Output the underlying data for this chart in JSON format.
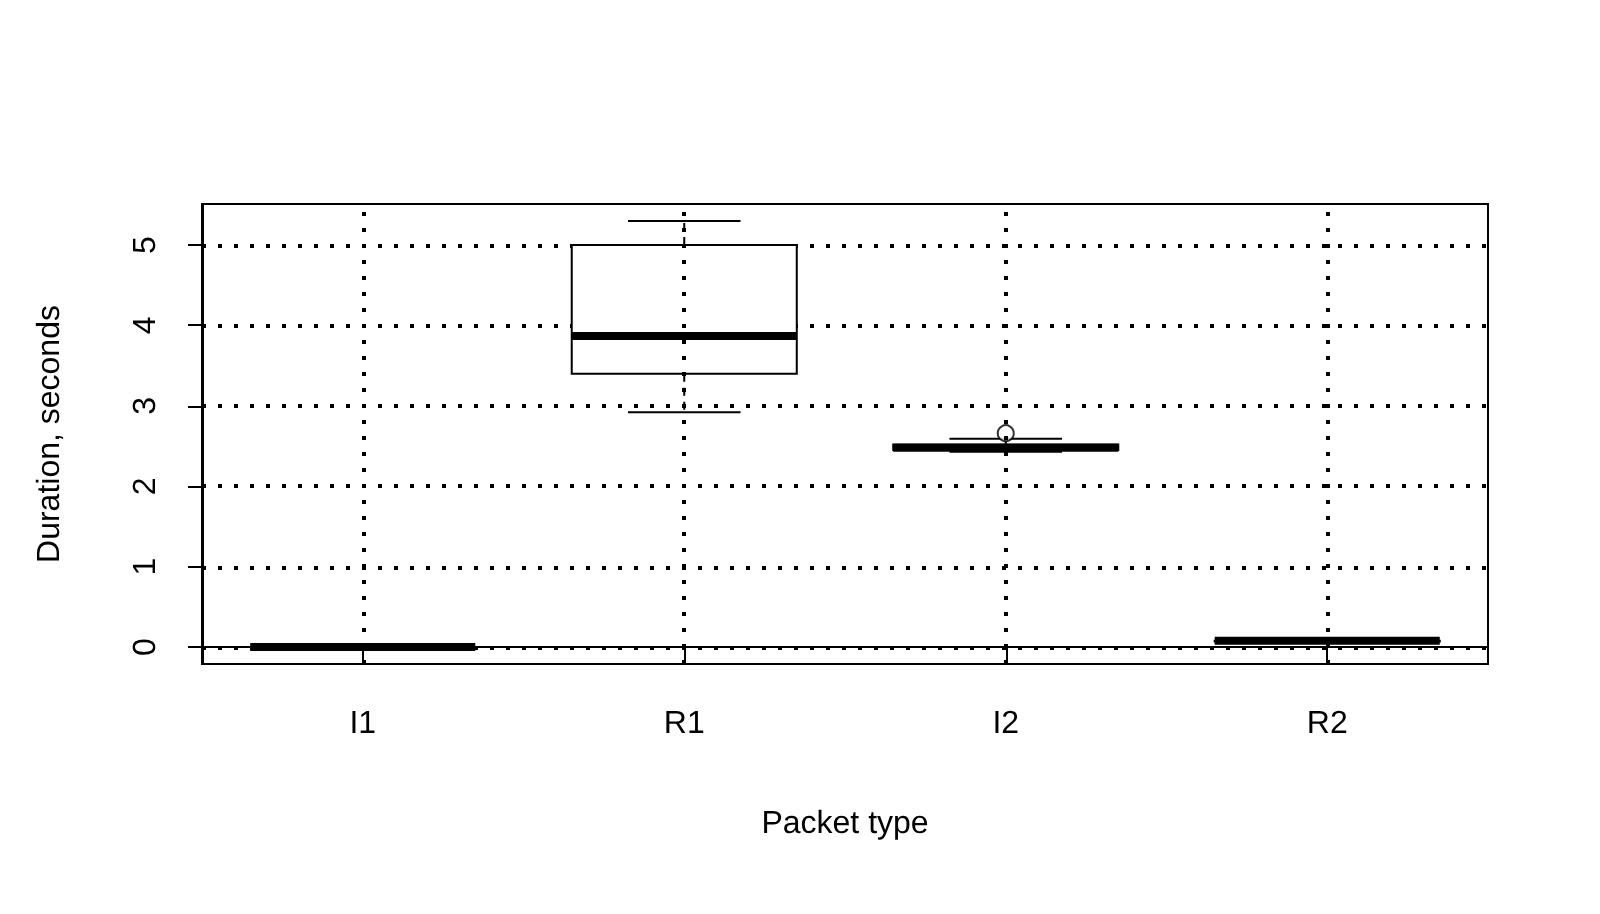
{
  "chart_data": {
    "type": "box",
    "xlabel": "Packet type",
    "ylabel": "Duration, seconds",
    "categories": [
      "I1",
      "R1",
      "I2",
      "R2"
    ],
    "boxes": [
      {
        "low": 0,
        "q1": 0,
        "median": 0,
        "q3": 0,
        "high": 0
      },
      {
        "low": 2.92,
        "q1": 3.4,
        "median": 3.87,
        "q3": 5.0,
        "high": 5.3
      },
      {
        "low": 2.43,
        "q1": 2.45,
        "median": 2.48,
        "q3": 2.52,
        "high": 2.59,
        "outliers": [
          2.66
        ]
      },
      {
        "low": 0.07,
        "q1": 0.07,
        "median": 0.08,
        "q3": 0.08,
        "high": 0.08
      }
    ],
    "ylim": [
      -0.21,
      5.51
    ],
    "yticks": [
      0,
      1,
      2,
      3,
      4,
      5
    ],
    "grid": true,
    "color": "#000000"
  }
}
